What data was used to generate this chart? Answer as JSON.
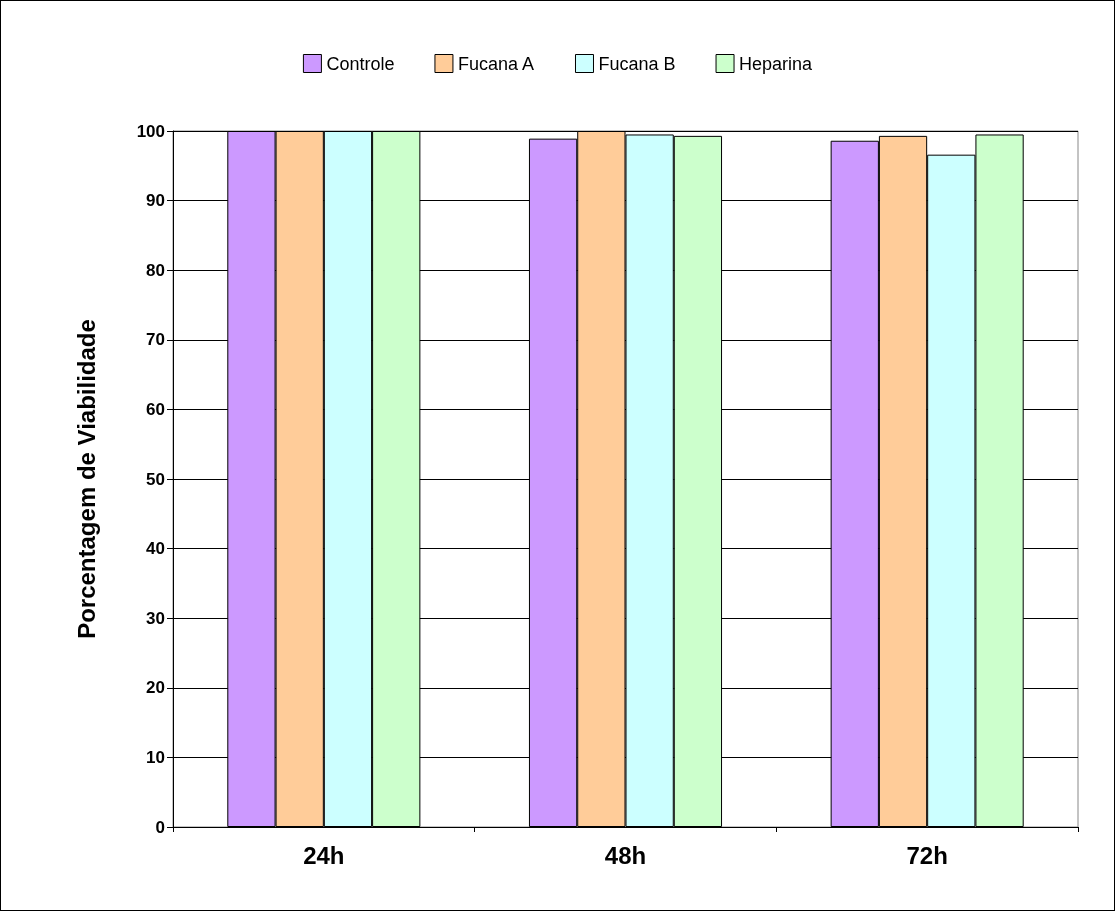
{
  "chart_data": {
    "type": "bar",
    "ylabel": "Porcentagem de Viabilidade",
    "categories": [
      "24h",
      "48h",
      "72h"
    ],
    "series": [
      {
        "name": "Controle",
        "color": "#cc99ff",
        "values": [
          100,
          98.9,
          98.6
        ]
      },
      {
        "name": "Fucana A",
        "color": "#ffcc99",
        "values": [
          100,
          100,
          99.3
        ]
      },
      {
        "name": "Fucana B",
        "color": "#ccffff",
        "values": [
          100,
          99.5,
          96.6
        ]
      },
      {
        "name": "Heparina",
        "color": "#ccffcc",
        "values": [
          100,
          99.3,
          99.5
        ]
      }
    ],
    "ylim": [
      0,
      100
    ],
    "yticks": [
      0,
      10,
      20,
      30,
      40,
      50,
      60,
      70,
      80,
      90,
      100
    ],
    "grid": "y",
    "legend": "top"
  }
}
